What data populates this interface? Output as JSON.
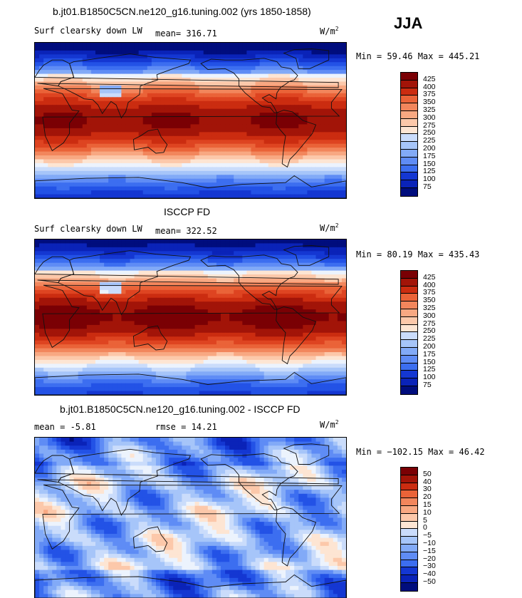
{
  "season": "JJA",
  "units": {
    "base": "W/m",
    "exp": "2"
  },
  "colors": {
    "abs": [
      "#000d7d",
      "#0a23b8",
      "#1437d2",
      "#2352e6",
      "#3c6ef0",
      "#5f8cf5",
      "#82aaf7",
      "#a6c5f9",
      "#cadcfb",
      "#ecf3fd",
      "#fde5d3",
      "#fcc8aa",
      "#f8a882",
      "#f2865c",
      "#ea6338",
      "#de4421",
      "#cb2c10",
      "#a21408",
      "#7a0004"
    ],
    "diff": [
      "#000d7d",
      "#0a23b8",
      "#1437d2",
      "#2352e6",
      "#3c6ef0",
      "#5f8cf5",
      "#82aaf7",
      "#a6c5f9",
      "#cadcfb",
      "#ecf3fd",
      "#fde5d3",
      "#fcc8aa",
      "#f8a882",
      "#f2865c",
      "#ea6338",
      "#de4421",
      "#cb2c10",
      "#a21408",
      "#7a0004"
    ]
  },
  "chart_data": [
    {
      "type": "heatmap",
      "title": "b.jt01.B1850C5CN.ne120_g16.tuning.002 (yrs 1850-1858)",
      "variable": "Surf clearsky down LW",
      "mean_label": "mean= 316.71",
      "minmax_label": "Min =  59.46 Max = 445.21",
      "min": 59.46,
      "max": 445.21,
      "levels": [
        "75",
        "100",
        "125",
        "150",
        "175",
        "200",
        "225",
        "250",
        "275",
        "300",
        "325",
        "350",
        "375",
        "400",
        "425"
      ]
    },
    {
      "type": "heatmap",
      "title": "ISCCP FD",
      "variable": "Surf clearsky down LW",
      "mean_label": "mean= 322.52",
      "minmax_label": "Min =  80.19 Max = 435.43",
      "min": 80.19,
      "max": 435.43,
      "levels": [
        "75",
        "100",
        "125",
        "150",
        "175",
        "200",
        "225",
        "250",
        "275",
        "300",
        "325",
        "350",
        "375",
        "400",
        "425"
      ]
    },
    {
      "type": "heatmap",
      "title": "b.jt01.B1850C5CN.ne120_g16.tuning.002 - ISCCP FD",
      "mean_label": "mean =   -5.81",
      "rmse_label": "rmse =   14.21",
      "minmax_label": "Min = −102.15 Max =  46.42",
      "min": -102.15,
      "max": 46.42,
      "levels": [
        "−50",
        "−40",
        "−30",
        "−20",
        "−15",
        "−10",
        "−5",
        "0",
        "5",
        "10",
        "15",
        "20",
        "30",
        "40",
        "50"
      ]
    }
  ]
}
